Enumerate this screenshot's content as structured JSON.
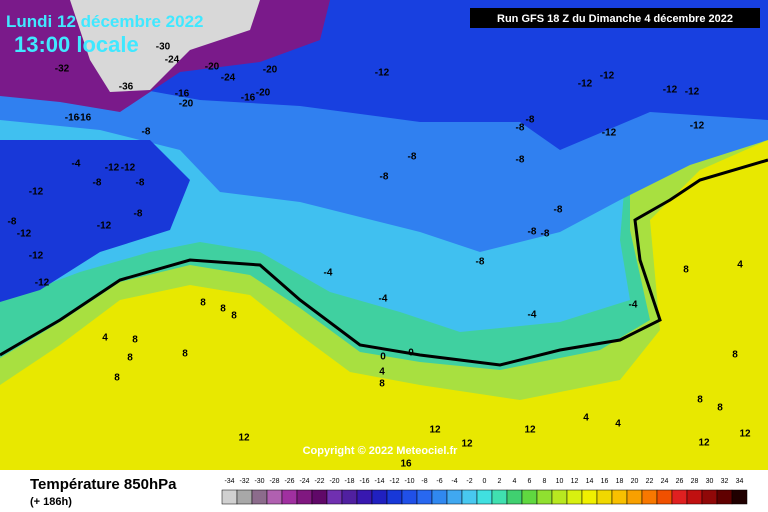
{
  "header": {
    "date": "Lundi 12 décembre 2022",
    "time": "13:00 locale",
    "run": "Run GFS 18 Z du Dimanche 4 décembre 2022"
  },
  "footer": {
    "title": "Température 850hPa",
    "lead": "(+ 186h)",
    "copyright": "Copyright © 2022 Meteociel.fr"
  },
  "scale": {
    "ticks": [
      -34,
      -32,
      -30,
      -28,
      -26,
      -24,
      -22,
      -20,
      -18,
      -16,
      -14,
      -12,
      -10,
      -8,
      -6,
      -4,
      -2,
      0,
      2,
      4,
      6,
      8,
      10,
      12,
      14,
      16,
      18,
      20,
      22,
      24,
      26,
      28,
      30,
      32,
      34
    ],
    "colors": [
      "#d0d0d0",
      "#a8a8a8",
      "#8c6c8c",
      "#b060b0",
      "#a030a0",
      "#801880",
      "#600868",
      "#7030b0",
      "#5020a0",
      "#3818b0",
      "#2020c0",
      "#1838d8",
      "#2050e8",
      "#2868f0",
      "#3088f0",
      "#40a8f0",
      "#48c8f0",
      "#40e0e0",
      "#40e0b0",
      "#40d070",
      "#60d840",
      "#90e030",
      "#b8e820",
      "#d8f010",
      "#f0f000",
      "#f0d800",
      "#f8c000",
      "#f8a000",
      "#f87800",
      "#f05000",
      "#e02020",
      "#c01010",
      "#900808",
      "#600000",
      "#200000"
    ]
  },
  "map_labels": [
    -32,
    -30,
    -36,
    -24,
    -16,
    -16,
    -20,
    -24,
    -20,
    -16,
    -20,
    -16,
    -20,
    -12,
    -8,
    -4,
    -12,
    -12,
    -8,
    -8,
    -12,
    -8,
    -12,
    -12,
    -12,
    -12,
    -8,
    -8,
    -4,
    -4,
    -12,
    -12,
    -12,
    -12,
    -12,
    -12,
    -8,
    -8,
    -8,
    -8,
    -8,
    -8,
    -8,
    -8,
    -4,
    -4,
    0,
    0,
    4,
    8,
    8,
    8,
    8,
    4,
    8,
    8,
    8,
    8,
    8,
    4,
    8,
    8,
    8,
    4,
    4,
    12,
    12,
    12,
    12,
    12,
    12,
    16
  ]
}
